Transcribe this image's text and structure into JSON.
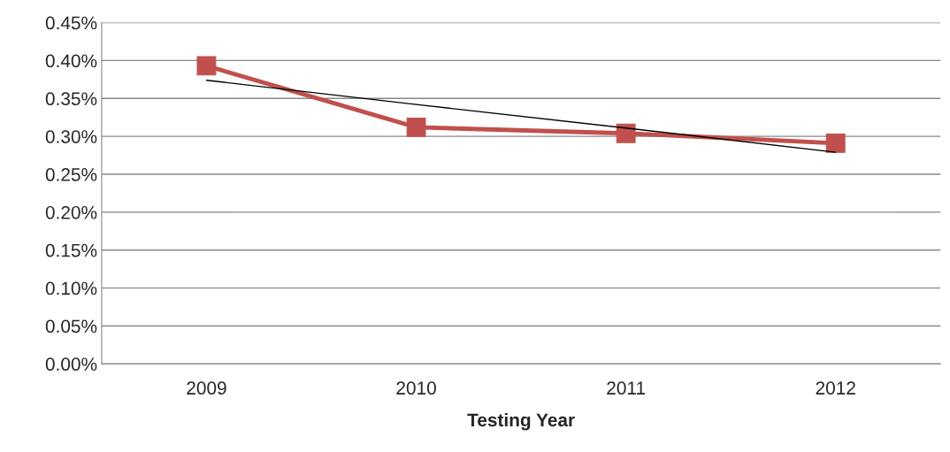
{
  "chart_data": {
    "type": "line",
    "xlabel": "Testing Year",
    "categories": [
      "2009",
      "2010",
      "2011",
      "2012"
    ],
    "series": [
      {
        "color": "#c0504d",
        "values": [
          0.393,
          0.312,
          0.304,
          0.291
        ],
        "marker": "square"
      },
      {
        "color": "#000000",
        "values": [
          0.374,
          0.342,
          0.311,
          0.279
        ],
        "marker": "none"
      }
    ],
    "ylim": [
      0,
      0.45
    ],
    "yticks": [
      {
        "value": 0,
        "label": "0.00%"
      },
      {
        "value": 0.05,
        "label": "0.05%"
      },
      {
        "value": 0.1,
        "label": "0.10%"
      },
      {
        "value": 0.15,
        "label": "0.15%"
      },
      {
        "value": 0.2,
        "label": "0.20%"
      },
      {
        "value": 0.25,
        "label": "0.25%"
      },
      {
        "value": 0.3,
        "label": "0.30%"
      },
      {
        "value": 0.35,
        "label": "0.35%"
      },
      {
        "value": 0.4,
        "label": "0.40%"
      },
      {
        "value": 0.45,
        "label": "0.45%"
      }
    ],
    "grid": "y"
  }
}
